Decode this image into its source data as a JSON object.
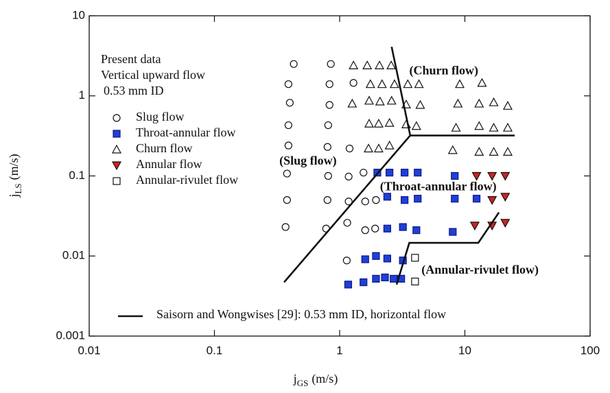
{
  "chart_data": {
    "type": "scatter",
    "xscale": "log",
    "yscale": "log",
    "xlim": [
      0.01,
      100
    ],
    "ylim": [
      0.001,
      10
    ],
    "xticks": [
      0.01,
      0.1,
      1,
      10,
      100
    ],
    "yticks": [
      0.001,
      0.01,
      0.1,
      1,
      10
    ],
    "x_label": {
      "symbol": "j",
      "sub": "GS",
      "unit": "(m/s)"
    },
    "y_label": {
      "symbol": "j",
      "sub": "LS",
      "unit": "(m/s)"
    },
    "legend_title": [
      "Present data",
      "Vertical upward flow",
      "0.53 mm ID"
    ],
    "series": [
      {
        "name": "Slug flow",
        "marker": "circle",
        "filled": false,
        "color": "#111111",
        "x": [
          0.43,
          0.39,
          0.4,
          0.39,
          0.39,
          0.38,
          0.38,
          0.37,
          0.85,
          0.83,
          0.83,
          0.81,
          0.8,
          0.81,
          0.8,
          0.78,
          1.29,
          1.2,
          1.18,
          1.18,
          1.15,
          1.14,
          1.55,
          1.6,
          1.95,
          1.92,
          1.6
        ],
        "values": [
          2.5,
          1.4,
          0.82,
          0.43,
          0.24,
          0.107,
          0.05,
          0.023,
          2.5,
          1.4,
          0.77,
          0.43,
          0.23,
          0.1,
          0.05,
          0.022,
          1.45,
          0.22,
          0.098,
          0.048,
          0.026,
          0.0088,
          0.11,
          0.048,
          0.05,
          0.022,
          0.021
        ]
      },
      {
        "name": "Throat-annular flow",
        "marker": "square",
        "filled": true,
        "color": "#1f3fd6",
        "x": [
          2.0,
          2.5,
          3.3,
          4.2,
          8.3,
          2.4,
          3.3,
          4.2,
          8.3,
          12.4,
          2.4,
          3.2,
          4.1,
          8.0,
          1.6,
          1.95,
          2.4,
          3.2,
          1.17,
          1.55,
          1.95,
          2.3,
          2.7,
          3.1
        ],
        "values": [
          0.11,
          0.11,
          0.11,
          0.11,
          0.1,
          0.055,
          0.05,
          0.052,
          0.052,
          0.052,
          0.022,
          0.023,
          0.021,
          0.02,
          0.0091,
          0.01,
          0.0093,
          0.0088,
          0.0044,
          0.0047,
          0.0052,
          0.0054,
          0.0052,
          0.0052
        ]
      },
      {
        "name": "Churn flow",
        "marker": "triangle",
        "filled": false,
        "color": "#111111",
        "x": [
          1.29,
          1.66,
          2.08,
          2.58,
          1.76,
          2.18,
          2.74,
          3.5,
          4.3,
          9.1,
          13.7,
          1.26,
          1.72,
          2.1,
          2.6,
          3.4,
          4.4,
          8.8,
          13,
          17,
          22,
          1.72,
          2.05,
          2.5,
          3.4,
          4.1,
          8.5,
          13,
          17,
          22,
          1.7,
          2.05,
          2.5,
          8.0,
          13,
          17,
          22
        ],
        "values": [
          2.4,
          2.4,
          2.4,
          2.4,
          1.4,
          1.4,
          1.4,
          1.4,
          1.4,
          1.4,
          1.45,
          0.8,
          0.87,
          0.85,
          0.87,
          0.78,
          0.77,
          0.8,
          0.8,
          0.83,
          0.75,
          0.45,
          0.45,
          0.46,
          0.44,
          0.42,
          0.4,
          0.42,
          0.4,
          0.4,
          0.22,
          0.22,
          0.24,
          0.21,
          0.2,
          0.2,
          0.2
        ]
      },
      {
        "name": "Annular flow",
        "marker": "triangle-down",
        "filled": true,
        "color": "#d42020",
        "x": [
          12.4,
          16.5,
          21,
          16.5,
          21,
          12,
          16.5,
          21
        ],
        "values": [
          0.1,
          0.1,
          0.1,
          0.05,
          0.055,
          0.024,
          0.024,
          0.026
        ]
      },
      {
        "name": "Annular-rivulet flow",
        "marker": "square",
        "filled": false,
        "color": "#111111",
        "x": [
          4.0,
          4.0
        ],
        "values": [
          0.0095,
          0.0048
        ]
      },
      {
        "name": "Saisorn and Wongwises [29]: 0.53 mm ID, horizontal flow",
        "marker": "line",
        "color": "#111111",
        "x": [
          2.6,
          3.66,
          25,
          null,
          0.36,
          3.66,
          null,
          2.85,
          3.6,
          12.8,
          18.7
        ],
        "values": [
          4.1,
          0.32,
          0.32,
          null,
          0.0047,
          0.32,
          null,
          0.0044,
          0.0146,
          0.0146,
          0.035
        ]
      }
    ],
    "annotations": [
      {
        "text": "(Churn flow)",
        "x": 3.6,
        "y": 2.0
      },
      {
        "text": "(Slug flow)",
        "x": 0.33,
        "y": 0.15
      },
      {
        "text": "(Throat-annular flow)",
        "x": 2.1,
        "y": 0.072
      },
      {
        "text": "(Annular-rivulet flow)",
        "x": 4.5,
        "y": 0.0065
      }
    ]
  }
}
